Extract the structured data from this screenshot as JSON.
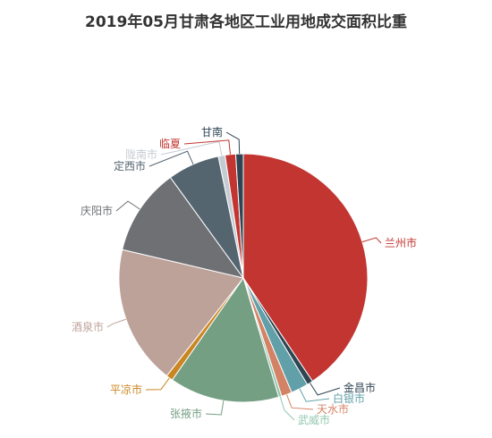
{
  "chart_data": {
    "type": "pie",
    "title": "2019年05月甘肃各地区工业用地成交面积比重",
    "slices": [
      {
        "name": "兰州市",
        "value": 41.5,
        "color": "#c23531"
      },
      {
        "name": "金昌市",
        "value": 0.8,
        "color": "#2f4554"
      },
      {
        "name": "白银市",
        "value": 2.3,
        "color": "#61a0a8"
      },
      {
        "name": "天水市",
        "value": 1.4,
        "color": "#d48265"
      },
      {
        "name": "武威市",
        "value": 0.4,
        "color": "#91c7ae"
      },
      {
        "name": "张掖市",
        "value": 14.6,
        "color": "#749f83"
      },
      {
        "name": "平凉市",
        "value": 0.9,
        "color": "#ca8622"
      },
      {
        "name": "酒泉市",
        "value": 18.5,
        "color": "#bda29a"
      },
      {
        "name": "庆阳市",
        "value": 11.6,
        "color": "#6e7074"
      },
      {
        "name": "定西市",
        "value": 6.9,
        "color": "#546570"
      },
      {
        "name": "陇南市",
        "value": 0.9,
        "color": "#c4ccd3"
      },
      {
        "name": "临夏",
        "value": 1.4,
        "color": "#c23531"
      },
      {
        "name": "甘南",
        "value": 1.0,
        "color": "#2f4554"
      }
    ]
  }
}
